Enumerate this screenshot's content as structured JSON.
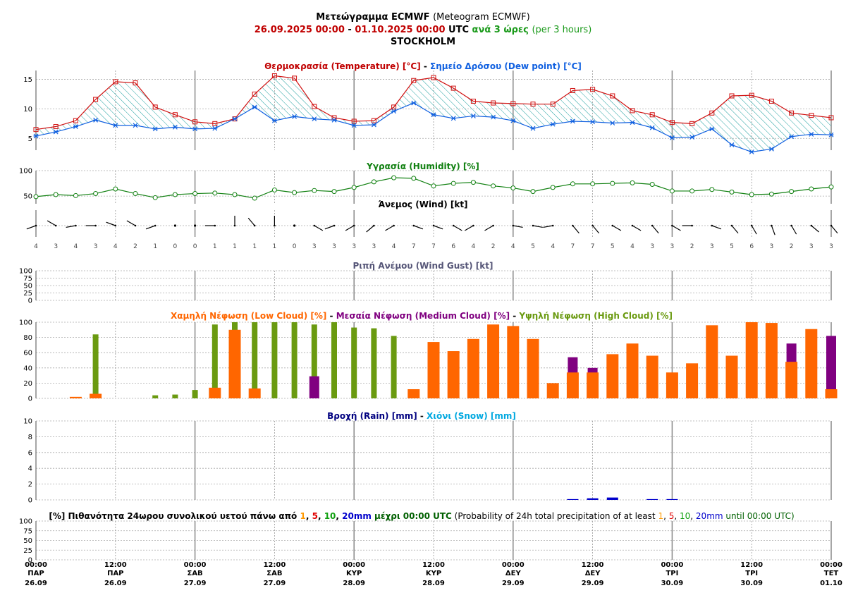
{
  "header": {
    "line1_bold": "Μετεώγραμμα ECMWF",
    "line1_normal": "(Meteogram ECMWF)",
    "date_from": "26.09.2025 00:00",
    "dash": "-",
    "date_to": "01.10.2025 00:00",
    "utc": "UTC",
    "interval_bold": "ανά 3 ώρες",
    "interval_normal": "(per 3 hours)",
    "station": "STOCKHOLM"
  },
  "colors": {
    "temperature": "#d01010",
    "dewpoint": "#1060e0",
    "humidity": "#108010",
    "low_cloud": "#ff6600",
    "medium_cloud": "#800080",
    "high_cloud": "#6a9a10",
    "rain": "#0000cc",
    "snow": "#00a8e0",
    "gust_title": "#555577",
    "hatch": "#20a0a0"
  },
  "chart_data": [
    {
      "id": "temperature",
      "type": "line",
      "title_parts": [
        {
          "text": "Θερμοκρασία (Temperature) [°C]",
          "color": "#c00000"
        },
        {
          "text": " - ",
          "color": "#000000"
        },
        {
          "text": "Σημείο Δρόσου (Dew point) [°C]",
          "color": "#1060e0"
        }
      ],
      "ylim": [
        3,
        16.5
      ],
      "yticks": [
        5,
        10,
        15
      ],
      "series": [
        {
          "values": [
            6.5,
            7.0,
            8.0,
            11.6,
            14.6,
            14.4,
            10.3,
            9.0,
            7.8,
            7.5,
            8.3,
            12.5,
            15.6,
            15.2,
            10.4,
            8.5,
            7.9,
            8.0,
            10.3,
            14.8,
            15.3,
            13.5,
            11.3,
            11.0,
            10.9,
            10.8,
            10.8,
            13.1,
            13.3,
            12.2,
            9.7,
            9.0,
            7.7,
            7.5,
            9.3,
            12.2,
            12.3,
            11.3,
            9.3,
            8.9,
            8.5
          ]
        },
        {
          "values": [
            5.4,
            6.1,
            7.0,
            8.1,
            7.2,
            7.2,
            6.6,
            6.9,
            6.6,
            6.7,
            8.3,
            10.3,
            8.0,
            8.7,
            8.3,
            8.1,
            7.2,
            7.3,
            9.6,
            11.0,
            9.0,
            8.4,
            8.8,
            8.6,
            8.0,
            6.7,
            7.4,
            7.9,
            7.8,
            7.6,
            7.7,
            6.8,
            5.1,
            5.2,
            6.6,
            3.9,
            2.7,
            3.2,
            5.3,
            5.7,
            5.6
          ]
        }
      ]
    },
    {
      "id": "humidity",
      "type": "line",
      "title": "Υγρασία (Humidity) [%]",
      "ylim": [
        35,
        100
      ],
      "yticks": [
        50,
        100
      ],
      "values": [
        49,
        53,
        51,
        55,
        64,
        55,
        47,
        53,
        55,
        56,
        53,
        46,
        62,
        57,
        61,
        59,
        67,
        78,
        86,
        85,
        70,
        75,
        77,
        70,
        66,
        59,
        67,
        74,
        74,
        75,
        76,
        73,
        60,
        60,
        63,
        58,
        53,
        54,
        59,
        64,
        68
      ]
    },
    {
      "id": "wind",
      "type": "table",
      "title": "Άνεμος (Wind) [kt]",
      "speeds": [
        4,
        3,
        4,
        3,
        4,
        2,
        1,
        0,
        0,
        1,
        1,
        1,
        1,
        0,
        3,
        3,
        3,
        3,
        4,
        7,
        7,
        6,
        4,
        2,
        4,
        5,
        4,
        7,
        7,
        5,
        4,
        3,
        3,
        2,
        3,
        5,
        6,
        3,
        2,
        3,
        3
      ],
      "directions": [
        250,
        300,
        260,
        270,
        290,
        300,
        250,
        0,
        0,
        270,
        0,
        320,
        0,
        0,
        120,
        250,
        240,
        230,
        240,
        110,
        110,
        120,
        240,
        240,
        100,
        100,
        260,
        140,
        140,
        120,
        120,
        140,
        120,
        270,
        110,
        140,
        150,
        160,
        150,
        130,
        140
      ]
    },
    {
      "id": "wind_gust",
      "type": "line",
      "title": "Ριπή Ανέμου (Wind Gust) [kt]",
      "ylim": [
        0,
        100
      ],
      "yticks": [
        0,
        25,
        50,
        75,
        100
      ],
      "values": []
    },
    {
      "id": "cloud",
      "type": "bar",
      "title_parts": [
        {
          "text": "Χαμηλή Νέφωση (Low Cloud) [%]",
          "color": "#ff6600"
        },
        {
          "text": " - ",
          "color": "#000000"
        },
        {
          "text": "Μεσαία Νέφωση (Medium Cloud) [%]",
          "color": "#800080"
        },
        {
          "text": " - ",
          "color": "#000000"
        },
        {
          "text": "Υψηλή Νέφωση (High Cloud) [%]",
          "color": "#6a9a10"
        }
      ],
      "ylim": [
        0,
        100
      ],
      "yticks": [
        0,
        20,
        40,
        60,
        80,
        100
      ],
      "series": [
        {
          "values": [
            0,
            0,
            2,
            6,
            0,
            0,
            0,
            0,
            0,
            14,
            90,
            13,
            0,
            0,
            0,
            0,
            0,
            0,
            0,
            12,
            74,
            62,
            78,
            97,
            95,
            78,
            20,
            34,
            34,
            58,
            72,
            56,
            34,
            46,
            96,
            56,
            100,
            99,
            48,
            91,
            12
          ]
        },
        {
          "values": [
            0,
            0,
            0,
            0,
            0,
            0,
            0,
            0,
            0,
            0,
            0,
            0,
            0,
            0,
            29,
            0,
            0,
            0,
            0,
            0,
            0,
            0,
            0,
            0,
            0,
            0,
            0,
            54,
            40,
            0,
            0,
            0,
            0,
            0,
            0,
            0,
            0,
            0,
            72,
            0,
            82
          ]
        },
        {
          "values": [
            0,
            0,
            0,
            84,
            0,
            0,
            4,
            5,
            11,
            97,
            100,
            100,
            100,
            100,
            97,
            100,
            93,
            92,
            82,
            0,
            0,
            0,
            0,
            0,
            0,
            0,
            0,
            0,
            0,
            0,
            0,
            0,
            0,
            0,
            0,
            0,
            0,
            0,
            0,
            0,
            0
          ]
        }
      ]
    },
    {
      "id": "precip",
      "type": "bar",
      "title_parts": [
        {
          "text": "Βροχή (Rain) [mm]",
          "color": "#000080"
        },
        {
          "text": " - ",
          "color": "#000000"
        },
        {
          "text": "Χιόνι (Snow) [mm]",
          "color": "#00a8e0"
        }
      ],
      "ylim": [
        0,
        10
      ],
      "yticks": [
        0,
        2,
        4,
        6,
        8,
        10
      ],
      "series": [
        {
          "values": [
            0,
            0,
            0,
            0,
            0,
            0,
            0,
            0,
            0,
            0,
            0,
            0,
            0,
            0,
            0,
            0,
            0,
            0,
            0,
            0,
            0,
            0,
            0,
            0,
            0,
            0,
            0,
            0.1,
            0.2,
            0.3,
            0,
            0.1,
            0.1,
            0,
            0,
            0,
            0,
            0,
            0,
            0,
            0
          ]
        },
        {
          "values": []
        }
      ]
    },
    {
      "id": "probability",
      "type": "bar",
      "title_parts": [
        {
          "text": "[%] Πιθανότητα 24ωρου συνολικού υετού πάνω από ",
          "color": "#000000",
          "bold": true
        },
        {
          "text": "1",
          "color": "#ff9900",
          "bold": true
        },
        {
          "text": ", ",
          "color": "#000000",
          "bold": true
        },
        {
          "text": "5",
          "color": "#e00000",
          "bold": true
        },
        {
          "text": ", ",
          "color": "#000000",
          "bold": true
        },
        {
          "text": "10",
          "color": "#10a010",
          "bold": true
        },
        {
          "text": ", ",
          "color": "#000000",
          "bold": true
        },
        {
          "text": "20mm",
          "color": "#0000cc",
          "bold": true
        },
        {
          "text": " μέχρι 00:00 UTC",
          "color": "#006000",
          "bold": true
        },
        {
          "text": " (Probability of 24h total precipitation of at least ",
          "color": "#000000",
          "bold": false
        },
        {
          "text": "1",
          "color": "#ff9900",
          "bold": false
        },
        {
          "text": ", ",
          "color": "#000000",
          "bold": false
        },
        {
          "text": "5",
          "color": "#e00000",
          "bold": false
        },
        {
          "text": ", ",
          "color": "#000000",
          "bold": false
        },
        {
          "text": "10",
          "color": "#10a010",
          "bold": false
        },
        {
          "text": ", ",
          "color": "#000000",
          "bold": false
        },
        {
          "text": "20mm",
          "color": "#0000cc",
          "bold": false
        },
        {
          "text": " until 00:00 UTC)",
          "color": "#006000",
          "bold": false
        }
      ],
      "ylim": [
        0,
        100
      ],
      "yticks": [
        0,
        25,
        50,
        75,
        100
      ],
      "values": []
    }
  ],
  "x_axis": {
    "labels": [
      {
        "time": "00:00",
        "day": "ΠΑΡ",
        "date": "26.09"
      },
      {
        "time": "12:00",
        "day": "ΠΑΡ",
        "date": "26.09"
      },
      {
        "time": "00:00",
        "day": "ΣΑΒ",
        "date": "27.09"
      },
      {
        "time": "12:00",
        "day": "ΣΑΒ",
        "date": "27.09"
      },
      {
        "time": "00:00",
        "day": "ΚΥΡ",
        "date": "28.09"
      },
      {
        "time": "12:00",
        "day": "ΚΥΡ",
        "date": "28.09"
      },
      {
        "time": "00:00",
        "day": "ΔΕΥ",
        "date": "29.09"
      },
      {
        "time": "12:00",
        "day": "ΔΕΥ",
        "date": "29.09"
      },
      {
        "time": "00:00",
        "day": "ΤΡΙ",
        "date": "30.09"
      },
      {
        "time": "12:00",
        "day": "ΤΡΙ",
        "date": "30.09"
      },
      {
        "time": "00:00",
        "day": "ΤΕΤ",
        "date": "01.10"
      }
    ]
  }
}
